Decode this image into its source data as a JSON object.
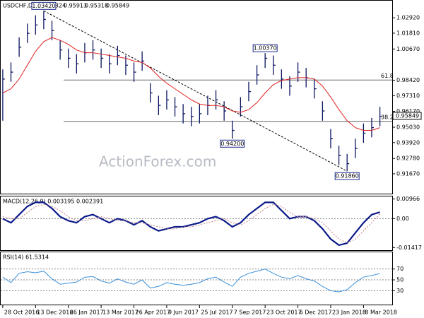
{
  "chart_data": [
    {
      "type": "ohlc",
      "symbol": "USDCHF,Daily",
      "ohlc": [
        "0.95324",
        "0.95913",
        "0.95318",
        "0.95849"
      ],
      "watermark": "ActionForex.com",
      "xlim": [
        -0.25,
        47.5
      ],
      "xticks": [
        {
          "value": 0,
          "label": "28 Oct 2016"
        },
        {
          "value": 4,
          "label": "13 Dec 2016"
        },
        {
          "value": 8,
          "label": "26 Jan 2017"
        },
        {
          "value": 12,
          "label": "13 Mar 2017"
        },
        {
          "value": 16,
          "label": "26 Apr 2017"
        },
        {
          "value": 20,
          "label": "9 Jun 2017"
        },
        {
          "value": 24,
          "label": "25 Jul 2017"
        },
        {
          "value": 28,
          "label": "7 Sep 2017"
        },
        {
          "value": 32,
          "label": "23 Oct 2017"
        },
        {
          "value": 36,
          "label": "6 Dec 2017"
        },
        {
          "value": 40,
          "label": "23 Jan 2018"
        },
        {
          "value": 44,
          "label": "8 Mar 2018"
        }
      ],
      "ylim": [
        0.9019,
        1.0415
      ],
      "yticks": [
        {
          "value": 1.0292,
          "label": "1.02920"
        },
        {
          "value": 1.0181,
          "label": "1.01810"
        },
        {
          "value": 1.0067,
          "label": "1.00670"
        },
        {
          "value": 0.9842,
          "label": "0.98420"
        },
        {
          "value": 0.9731,
          "label": "0.97310"
        },
        {
          "value": 0.9617,
          "label": "0.96170"
        },
        {
          "value": 0.9503,
          "label": "0.95030"
        },
        {
          "value": 0.9392,
          "label": "0.93920"
        },
        {
          "value": 0.9278,
          "label": "0.92780"
        },
        {
          "value": 0.9167,
          "label": "0.91670"
        }
      ],
      "last_price": {
        "value": 0.95849,
        "label": "0.95849"
      },
      "annotations": [
        {
          "x": 5,
          "value": 1.0342,
          "label": "1.03420"
        },
        {
          "x": 32,
          "value": 1.0037,
          "label": "1.00370"
        },
        {
          "x": 28,
          "value": 0.942,
          "label": "0.94200"
        },
        {
          "x": 42,
          "value": 0.9186,
          "label": "0.91860"
        }
      ],
      "fib_levels": [
        {
          "ratio": 61.8,
          "value": 0.9843
        },
        {
          "ratio": 38.2,
          "value": 0.9545
        }
      ],
      "bar_color": "#0b1660",
      "ma_color": "#e02020",
      "close": [
        0.985,
        0.99,
        1.008,
        1.018,
        1.024,
        1.028,
        1.02,
        1.006,
        1.0,
        0.996,
        1.004,
        1.006,
        1.0,
        0.996,
        1.002,
        0.995,
        0.99,
        0.998,
        0.975,
        0.966,
        0.97,
        0.965,
        0.96,
        0.958,
        0.96,
        0.966,
        0.97,
        0.962,
        0.948,
        0.965,
        0.976,
        0.988,
        1.0,
        0.995,
        0.985,
        0.98,
        0.99,
        0.986,
        0.978,
        0.962,
        0.942,
        0.93,
        0.924,
        0.935,
        0.946,
        0.95,
        0.958
      ],
      "high": [
        0.992,
        0.997,
        1.015,
        1.025,
        1.031,
        1.0342,
        1.027,
        1.013,
        1.007,
        1.003,
        1.011,
        1.013,
        1.007,
        1.003,
        1.009,
        1.002,
        0.997,
        1.005,
        0.982,
        0.973,
        0.977,
        0.972,
        0.967,
        0.965,
        0.967,
        0.973,
        0.977,
        0.969,
        0.955,
        0.972,
        0.983,
        0.995,
        1.0037,
        1.002,
        0.992,
        0.987,
        0.997,
        0.993,
        0.985,
        0.969,
        0.949,
        0.937,
        0.931,
        0.942,
        0.953,
        0.957,
        0.965
      ],
      "low": [
        0.955,
        0.983,
        1.001,
        1.011,
        1.017,
        1.021,
        1.013,
        0.999,
        0.993,
        0.989,
        0.997,
        0.999,
        0.993,
        0.989,
        0.995,
        0.988,
        0.983,
        0.991,
        0.968,
        0.959,
        0.963,
        0.958,
        0.953,
        0.951,
        0.953,
        0.959,
        0.963,
        0.955,
        0.942,
        0.958,
        0.969,
        0.981,
        0.993,
        0.988,
        0.978,
        0.973,
        0.983,
        0.979,
        0.971,
        0.955,
        0.935,
        0.923,
        0.9186,
        0.928,
        0.939,
        0.943,
        0.951
      ],
      "ma": [
        0.975,
        0.978,
        0.985,
        0.995,
        1.005,
        1.012,
        1.015,
        1.013,
        1.01,
        1.006,
        1.004,
        1.004,
        1.003,
        1.002,
        1.001,
        1.0,
        0.998,
        0.997,
        0.993,
        0.987,
        0.982,
        0.978,
        0.974,
        0.97,
        0.967,
        0.966,
        0.966,
        0.965,
        0.962,
        0.961,
        0.963,
        0.968,
        0.975,
        0.981,
        0.984,
        0.985,
        0.986,
        0.986,
        0.985,
        0.98,
        0.972,
        0.963,
        0.955,
        0.95,
        0.948,
        0.948,
        0.95
      ]
    },
    {
      "type": "line",
      "title": "MACD(12,26,9) 0.003195 0.002391",
      "ylim": [
        -0.0158,
        0.0109
      ],
      "yticks": [
        {
          "value": 0.00966,
          "label": "0.00966"
        },
        {
          "value": 0,
          "label": "0.00"
        },
        {
          "value": -0.01417,
          "label": "-0.01417"
        }
      ],
      "zero_line": true,
      "series": [
        {
          "color": "#0b1a8a",
          "width": 2.2,
          "dash": false,
          "values": [
            0.0,
            -0.002,
            0.002,
            0.006,
            0.008,
            0.008,
            0.005,
            0.001,
            -0.001,
            -0.002,
            0.001,
            0.002,
            0.0,
            -0.002,
            0.0,
            -0.001,
            -0.003,
            -0.001,
            -0.004,
            -0.006,
            -0.005,
            -0.004,
            -0.004,
            -0.003,
            -0.002,
            0.0,
            0.001,
            -0.001,
            -0.004,
            -0.002,
            0.002,
            0.005,
            0.008,
            0.008,
            0.004,
            0.0,
            0.001,
            0.001,
            -0.001,
            -0.005,
            -0.01,
            -0.013,
            -0.012,
            -0.007,
            -0.002,
            0.002,
            0.0032
          ]
        },
        {
          "color": "#c08080",
          "width": 1,
          "dash": true,
          "values": [
            0.001,
            0.0,
            0.0,
            0.003,
            0.006,
            0.007,
            0.006,
            0.004,
            0.001,
            -0.001,
            -0.001,
            0.0,
            0.001,
            0.0,
            -0.001,
            -0.001,
            -0.002,
            -0.002,
            -0.003,
            -0.004,
            -0.005,
            -0.005,
            -0.004,
            -0.004,
            -0.003,
            -0.002,
            -0.001,
            0.0,
            -0.002,
            -0.003,
            -0.001,
            0.002,
            0.005,
            0.007,
            0.006,
            0.003,
            0.001,
            0.001,
            0.0,
            -0.002,
            -0.006,
            -0.01,
            -0.012,
            -0.01,
            -0.006,
            -0.002,
            0.0024
          ]
        }
      ]
    },
    {
      "type": "line",
      "title": "RSI(14) 61.5314",
      "ylim": [
        3.3,
        100.7
      ],
      "yticks": [
        70,
        50,
        30
      ],
      "tick_lines": true,
      "series": [
        {
          "color": "#3a8fd8",
          "width": 1,
          "dash": false,
          "values": [
            55,
            45,
            62,
            65,
            63,
            66,
            52,
            42,
            44,
            46,
            55,
            56,
            48,
            44,
            52,
            46,
            42,
            50,
            35,
            38,
            45,
            42,
            40,
            42,
            45,
            52,
            55,
            46,
            38,
            55,
            62,
            66,
            70,
            62,
            55,
            52,
            58,
            52,
            48,
            38,
            30,
            28,
            32,
            45,
            55,
            58,
            61.5
          ]
        }
      ]
    }
  ]
}
